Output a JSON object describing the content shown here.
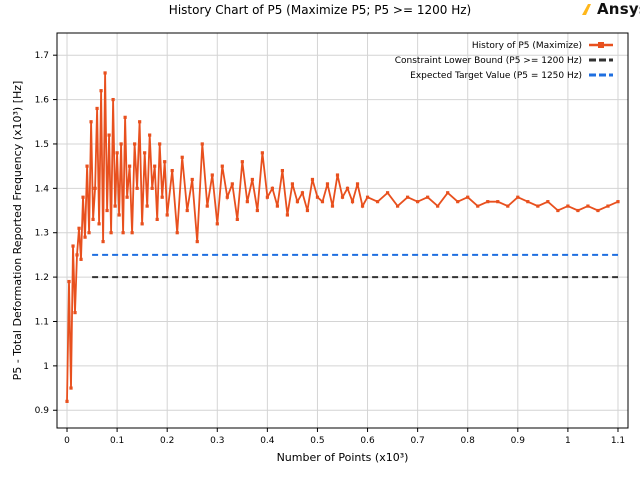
{
  "title": "History Chart of P5 (Maximize P5; P5 >= 1200 Hz)",
  "logo_text": "Ansys",
  "chart_data": {
    "type": "line",
    "xlabel": "Number of Points  (x10³)",
    "ylabel": "P5 - Total Deformation Reported Frequency  (x10³)  [Hz]",
    "xlim": [
      -0.02,
      1.12
    ],
    "ylim": [
      0.86,
      1.75
    ],
    "x_ticks": [
      0,
      0.1,
      0.2,
      0.3,
      0.4,
      0.5,
      0.6,
      0.7,
      0.8,
      0.9,
      1,
      1.1
    ],
    "x_tick_labels": [
      "0",
      "0.1",
      "0.2",
      "0.3",
      "0.4",
      "0.5",
      "0.6",
      "0.7",
      "0.8",
      "0.9",
      "1",
      "1.1"
    ],
    "y_ticks": [
      0.9,
      1,
      1.1,
      1.2,
      1.3,
      1.4,
      1.5,
      1.6,
      1.7
    ],
    "y_tick_labels": [
      "0.9",
      "1",
      "1.1",
      "1.2",
      "1.3",
      "1.4",
      "1.5",
      "1.6",
      "1.7"
    ],
    "grid": true,
    "legend_position": "top-right",
    "series": [
      {
        "name": "History of P5 (Maximize)",
        "color": "#e8501e",
        "style": "line-with-square-markers",
        "x": [
          0,
          0.004,
          0.008,
          0.012,
          0.016,
          0.02,
          0.024,
          0.028,
          0.032,
          0.036,
          0.04,
          0.044,
          0.048,
          0.052,
          0.056,
          0.06,
          0.064,
          0.068,
          0.072,
          0.076,
          0.08,
          0.084,
          0.088,
          0.092,
          0.096,
          0.1,
          0.104,
          0.108,
          0.112,
          0.116,
          0.12,
          0.125,
          0.13,
          0.135,
          0.14,
          0.145,
          0.15,
          0.155,
          0.16,
          0.165,
          0.17,
          0.175,
          0.18,
          0.185,
          0.19,
          0.195,
          0.2,
          0.21,
          0.22,
          0.23,
          0.24,
          0.25,
          0.26,
          0.27,
          0.28,
          0.29,
          0.3,
          0.31,
          0.32,
          0.33,
          0.34,
          0.35,
          0.36,
          0.37,
          0.38,
          0.39,
          0.4,
          0.41,
          0.42,
          0.43,
          0.44,
          0.45,
          0.46,
          0.47,
          0.48,
          0.49,
          0.5,
          0.51,
          0.52,
          0.53,
          0.54,
          0.55,
          0.56,
          0.57,
          0.58,
          0.59,
          0.6,
          0.62,
          0.64,
          0.66,
          0.68,
          0.7,
          0.72,
          0.74,
          0.76,
          0.78,
          0.8,
          0.82,
          0.84,
          0.86,
          0.88,
          0.9,
          0.92,
          0.94,
          0.96,
          0.98,
          1.0,
          1.02,
          1.04,
          1.06,
          1.08,
          1.1
        ],
        "y": [
          0.92,
          1.19,
          0.95,
          1.27,
          1.12,
          1.25,
          1.31,
          1.24,
          1.38,
          1.29,
          1.45,
          1.3,
          1.55,
          1.33,
          1.4,
          1.58,
          1.32,
          1.62,
          1.28,
          1.66,
          1.35,
          1.52,
          1.3,
          1.6,
          1.36,
          1.48,
          1.34,
          1.5,
          1.3,
          1.56,
          1.38,
          1.45,
          1.3,
          1.5,
          1.4,
          1.55,
          1.32,
          1.48,
          1.36,
          1.52,
          1.4,
          1.45,
          1.33,
          1.5,
          1.38,
          1.46,
          1.34,
          1.44,
          1.3,
          1.47,
          1.35,
          1.42,
          1.28,
          1.5,
          1.36,
          1.43,
          1.32,
          1.45,
          1.38,
          1.41,
          1.33,
          1.46,
          1.37,
          1.42,
          1.35,
          1.48,
          1.38,
          1.4,
          1.36,
          1.44,
          1.34,
          1.41,
          1.37,
          1.39,
          1.35,
          1.42,
          1.38,
          1.37,
          1.41,
          1.36,
          1.43,
          1.38,
          1.4,
          1.37,
          1.41,
          1.36,
          1.38,
          1.37,
          1.39,
          1.36,
          1.38,
          1.37,
          1.38,
          1.36,
          1.39,
          1.37,
          1.38,
          1.36,
          1.37,
          1.37,
          1.36,
          1.38,
          1.37,
          1.36,
          1.37,
          1.35,
          1.36,
          1.35,
          1.36,
          1.35,
          1.36,
          1.37
        ]
      },
      {
        "name": "Constraint Lower Bound (P5 >= 1200 Hz)",
        "color": "#333333",
        "style": "dashed",
        "x": [
          0.05,
          1.1
        ],
        "y": [
          1.2,
          1.2
        ]
      },
      {
        "name": "Expected Target Value (P5 = 1250 Hz)",
        "color": "#1f6fe0",
        "style": "dashed",
        "x": [
          0.05,
          1.1
        ],
        "y": [
          1.25,
          1.25
        ]
      }
    ]
  }
}
